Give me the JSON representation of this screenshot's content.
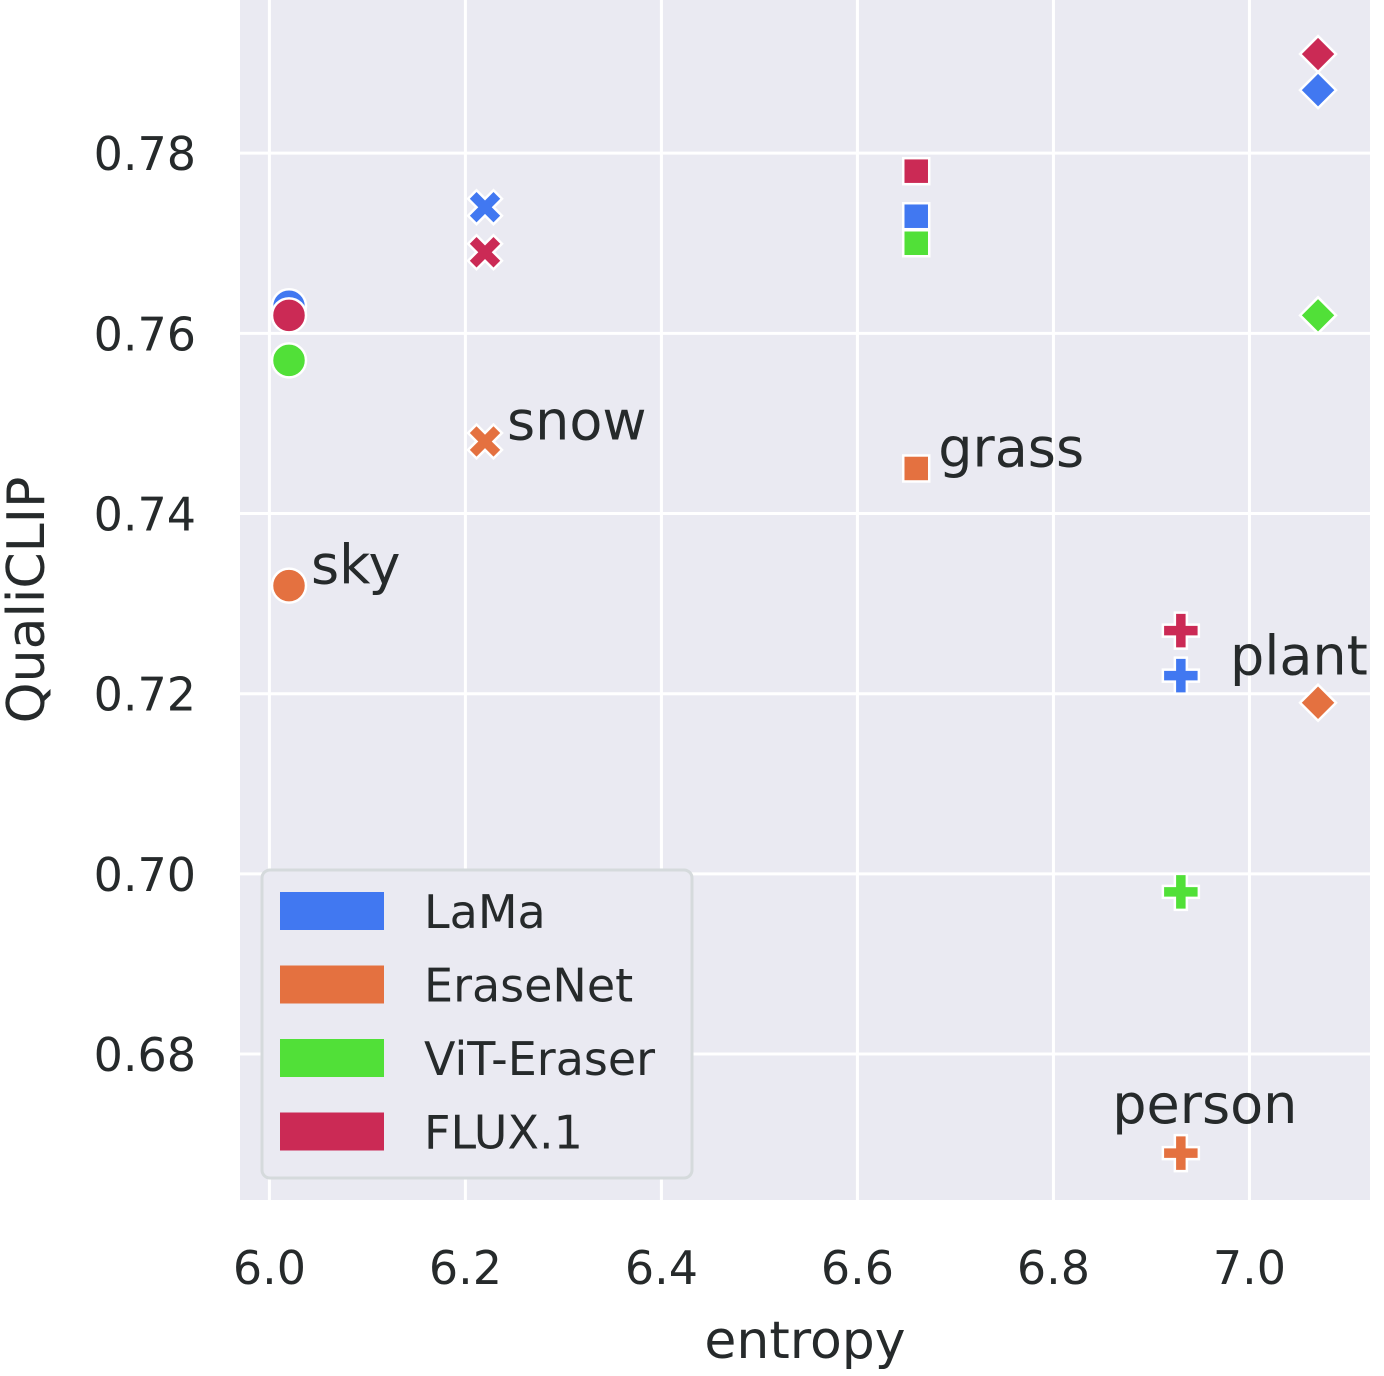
{
  "chart_data": {
    "type": "scatter",
    "title": "",
    "xlabel": "entropy",
    "ylabel": "QualiCLIP",
    "xlim": [
      5.97,
      7.123
    ],
    "ylim": [
      0.6638,
      0.797
    ],
    "xticks": [
      6.0,
      6.2,
      6.4,
      6.6,
      6.8,
      7.0
    ],
    "xtick_labels": [
      "6.0",
      "6.2",
      "6.4",
      "6.6",
      "6.8",
      "7.0"
    ],
    "yticks": [
      0.68,
      0.7,
      0.72,
      0.74,
      0.76,
      0.78
    ],
    "ytick_labels": [
      "0.68",
      "0.70",
      "0.72",
      "0.74",
      "0.76",
      "0.78"
    ],
    "grid": true,
    "legend_position": "lower-left",
    "categories": [
      {
        "name": "sky",
        "marker": "circle",
        "x": 6.02
      },
      {
        "name": "snow",
        "marker": "x",
        "x": 6.22
      },
      {
        "name": "grass",
        "marker": "square",
        "x": 6.66
      },
      {
        "name": "person",
        "marker": "plus",
        "x": 6.93
      },
      {
        "name": "plant",
        "marker": "diamond",
        "x": 7.07
      }
    ],
    "series": [
      {
        "name": "LaMa",
        "color": "#4178f1",
        "values": {
          "sky": 0.763,
          "snow": 0.774,
          "grass": 0.773,
          "person": 0.722,
          "plant": 0.787
        }
      },
      {
        "name": "EraseNet",
        "color": "#e47140",
        "values": {
          "sky": 0.732,
          "snow": 0.748,
          "grass": 0.745,
          "person": 0.669,
          "plant": 0.719
        }
      },
      {
        "name": "ViT-Eraser",
        "color": "#51e038",
        "values": {
          "sky": 0.757,
          "grass": 0.77,
          "person": 0.698,
          "plant": 0.762
        }
      },
      {
        "name": "FLUX.1",
        "color": "#cb2a55",
        "values": {
          "sky": 0.762,
          "snow": 0.769,
          "grass": 0.778,
          "person": 0.727,
          "plant": 0.791
        }
      }
    ],
    "annotations": [
      {
        "text": "sky",
        "x": 6.02,
        "y": 0.732,
        "anchor": "right-above"
      },
      {
        "text": "snow",
        "x": 6.22,
        "y": 0.748,
        "anchor": "right-above"
      },
      {
        "text": "grass",
        "x": 6.66,
        "y": 0.745,
        "anchor": "right-above"
      },
      {
        "text": "plant",
        "x": 7.07,
        "y": 0.719,
        "anchor": "left-above"
      },
      {
        "text": "person",
        "x": 6.93,
        "y": 0.669,
        "anchor": "above"
      }
    ]
  },
  "colors": {
    "plot_bg": "#eaeaf2",
    "grid": "#ffffff",
    "text": "#262a2b"
  }
}
